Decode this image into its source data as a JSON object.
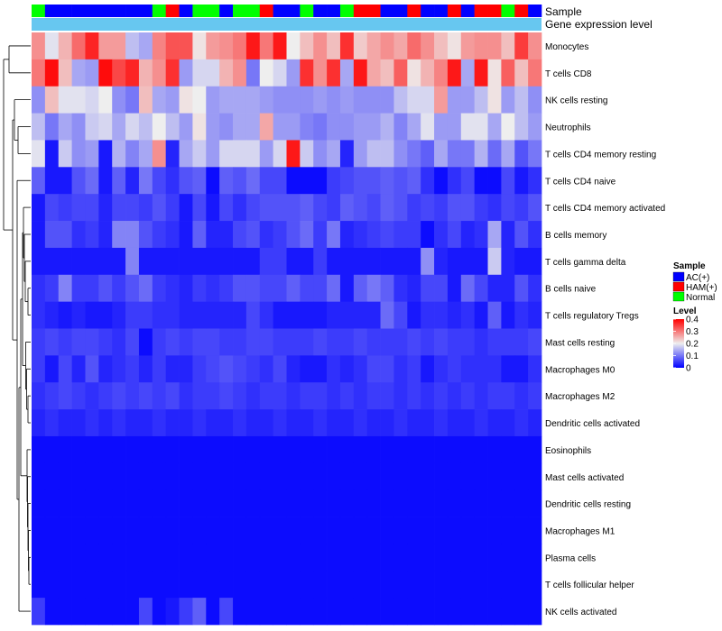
{
  "chart_data": {
    "type": "heatmap",
    "title": "",
    "annotation_labels": {
      "sample": "Sample",
      "gene_expression": "Gene expression level"
    },
    "legend": {
      "sample": {
        "title": "Sample",
        "entries": [
          {
            "label": "AC(+)",
            "color": "#0000FF"
          },
          {
            "label": "HAM(+)",
            "color": "#FF0000"
          },
          {
            "label": "Normal",
            "color": "#00FF00"
          }
        ]
      },
      "level": {
        "title": "Level",
        "ticks": [
          "0.4",
          "0.3",
          "0.2",
          "0.1",
          "0"
        ],
        "tick_values": [
          0.4,
          0.3,
          0.2,
          0.1,
          0
        ],
        "range": [
          0,
          0.4
        ]
      }
    },
    "colors": {
      "low": "#0000FF",
      "mid": "#EEEEEE",
      "high": "#FF0000",
      "gene_expression_bar": "#67C7F0",
      "dendrogram": "#000000"
    },
    "columns_sample_group": [
      "Normal",
      "AC(+)",
      "AC(+)",
      "AC(+)",
      "AC(+)",
      "AC(+)",
      "AC(+)",
      "AC(+)",
      "AC(+)",
      "Normal",
      "HAM(+)",
      "AC(+)",
      "Normal",
      "Normal",
      "AC(+)",
      "Normal",
      "Normal",
      "HAM(+)",
      "AC(+)",
      "AC(+)",
      "Normal",
      "AC(+)",
      "AC(+)",
      "Normal",
      "HAM(+)",
      "HAM(+)",
      "AC(+)",
      "AC(+)",
      "HAM(+)",
      "AC(+)",
      "AC(+)",
      "HAM(+)",
      "AC(+)",
      "HAM(+)",
      "HAM(+)",
      "Normal",
      "HAM(+)",
      "AC(+)"
    ],
    "rows": [
      "Monocytes",
      "T cells CD8",
      "NK cells resting",
      "Neutrophils",
      "T cells CD4 memory resting",
      "T cells CD4 naive",
      "T cells CD4 memory activated",
      "B cells memory",
      "T cells gamma delta",
      "B cells naive",
      "T cells regulatory  Tregs",
      "Mast cells resting",
      "Macrophages M0",
      "Macrophages M2",
      "Dendritic cells activated",
      "Eosinophils",
      "Mast cells activated",
      "Dendritic cells resting",
      "Macrophages M1",
      "Plasma cells",
      "T cells follicular helper",
      "NK cells activated"
    ],
    "values": [
      [
        0.28,
        0.19,
        0.25,
        0.31,
        0.37,
        0.27,
        0.27,
        0.16,
        0.14,
        0.29,
        0.33,
        0.33,
        0.21,
        0.27,
        0.28,
        0.3,
        0.38,
        0.3,
        0.38,
        0.2,
        0.24,
        0.28,
        0.24,
        0.36,
        0.23,
        0.26,
        0.28,
        0.26,
        0.31,
        0.28,
        0.24,
        0.21,
        0.27,
        0.28,
        0.28,
        0.24,
        0.35,
        0.28
      ],
      [
        0.3,
        0.39,
        0.24,
        0.14,
        0.13,
        0.39,
        0.34,
        0.37,
        0.25,
        0.28,
        0.36,
        0.13,
        0.18,
        0.18,
        0.25,
        0.28,
        0.1,
        0.2,
        0.18,
        0.13,
        0.36,
        0.28,
        0.36,
        0.14,
        0.38,
        0.26,
        0.24,
        0.32,
        0.21,
        0.25,
        0.29,
        0.38,
        0.14,
        0.38,
        0.21,
        0.32,
        0.24,
        0.3
      ],
      [
        0.12,
        0.24,
        0.19,
        0.19,
        0.18,
        0.2,
        0.12,
        0.1,
        0.24,
        0.14,
        0.13,
        0.21,
        0.2,
        0.13,
        0.14,
        0.14,
        0.14,
        0.13,
        0.12,
        0.12,
        0.12,
        0.13,
        0.12,
        0.13,
        0.12,
        0.12,
        0.12,
        0.16,
        0.18,
        0.18,
        0.27,
        0.13,
        0.13,
        0.16,
        0.21,
        0.13,
        0.16,
        0.12
      ],
      [
        0.16,
        0.1,
        0.14,
        0.12,
        0.17,
        0.18,
        0.14,
        0.18,
        0.16,
        0.2,
        0.16,
        0.13,
        0.21,
        0.13,
        0.12,
        0.14,
        0.14,
        0.26,
        0.13,
        0.13,
        0.11,
        0.1,
        0.12,
        0.12,
        0.13,
        0.13,
        0.15,
        0.11,
        0.14,
        0.19,
        0.13,
        0.13,
        0.19,
        0.19,
        0.14,
        0.2,
        0.16,
        0.13
      ],
      [
        0.19,
        0.02,
        0.17,
        0.12,
        0.13,
        0.02,
        0.15,
        0.11,
        0.14,
        0.28,
        0.03,
        0.14,
        0.17,
        0.13,
        0.18,
        0.18,
        0.18,
        0.13,
        0.18,
        0.38,
        0.17,
        0.12,
        0.14,
        0.03,
        0.13,
        0.16,
        0.16,
        0.12,
        0.1,
        0.08,
        0.14,
        0.1,
        0.1,
        0.15,
        0.09,
        0.14,
        0.07,
        0.1
      ],
      [
        0.08,
        0.02,
        0.02,
        0.07,
        0.09,
        0.02,
        0.08,
        0.03,
        0.1,
        0.06,
        0.04,
        0.07,
        0.08,
        0.01,
        0.08,
        0.07,
        0.09,
        0.06,
        0.06,
        0.01,
        0.01,
        0.01,
        0.05,
        0.06,
        0.07,
        0.07,
        0.08,
        0.07,
        0.08,
        0.04,
        0.01,
        0.04,
        0.06,
        0.01,
        0.01,
        0.06,
        0.02,
        0.04
      ],
      [
        0.02,
        0.06,
        0.05,
        0.06,
        0.06,
        0.03,
        0.06,
        0.06,
        0.05,
        0.07,
        0.05,
        0.02,
        0.06,
        0.02,
        0.06,
        0.04,
        0.06,
        0.07,
        0.07,
        0.07,
        0.08,
        0.06,
        0.05,
        0.08,
        0.07,
        0.06,
        0.08,
        0.07,
        0.05,
        0.06,
        0.05,
        0.07,
        0.07,
        0.05,
        0.04,
        0.06,
        0.05,
        0.07
      ],
      [
        0.02,
        0.07,
        0.07,
        0.04,
        0.05,
        0.03,
        0.11,
        0.11,
        0.07,
        0.05,
        0.04,
        0.02,
        0.08,
        0.03,
        0.03,
        0.06,
        0.07,
        0.04,
        0.05,
        0.07,
        0.09,
        0.05,
        0.1,
        0.03,
        0.04,
        0.05,
        0.06,
        0.05,
        0.05,
        0.01,
        0.04,
        0.06,
        0.03,
        0.04,
        0.14,
        0.03,
        0.07,
        0.04
      ],
      [
        0.02,
        0.02,
        0.02,
        0.02,
        0.02,
        0.02,
        0.02,
        0.11,
        0.02,
        0.02,
        0.02,
        0.02,
        0.02,
        0.02,
        0.02,
        0.02,
        0.02,
        0.05,
        0.05,
        0.02,
        0.02,
        0.05,
        0.02,
        0.02,
        0.02,
        0.02,
        0.02,
        0.02,
        0.02,
        0.12,
        0.03,
        0.02,
        0.02,
        0.02,
        0.17,
        0.03,
        0.02,
        0.02
      ],
      [
        0.04,
        0.05,
        0.11,
        0.05,
        0.05,
        0.07,
        0.05,
        0.07,
        0.09,
        0.05,
        0.04,
        0.03,
        0.05,
        0.04,
        0.05,
        0.07,
        0.07,
        0.06,
        0.06,
        0.08,
        0.06,
        0.06,
        0.09,
        0.02,
        0.08,
        0.1,
        0.08,
        0.04,
        0.03,
        0.06,
        0.06,
        0.02,
        0.09,
        0.06,
        0.03,
        0.03,
        0.07,
        0.04
      ],
      [
        0.04,
        0.03,
        0.02,
        0.03,
        0.02,
        0.02,
        0.03,
        0.05,
        0.05,
        0.04,
        0.04,
        0.03,
        0.03,
        0.03,
        0.03,
        0.03,
        0.06,
        0.04,
        0.02,
        0.02,
        0.02,
        0.02,
        0.03,
        0.03,
        0.03,
        0.03,
        0.09,
        0.06,
        0.02,
        0.04,
        0.04,
        0.03,
        0.04,
        0.02,
        0.08,
        0.02,
        0.04,
        0.03
      ],
      [
        0.05,
        0.06,
        0.05,
        0.06,
        0.06,
        0.05,
        0.04,
        0.06,
        0.01,
        0.05,
        0.06,
        0.05,
        0.06,
        0.06,
        0.05,
        0.05,
        0.06,
        0.06,
        0.05,
        0.05,
        0.05,
        0.06,
        0.05,
        0.05,
        0.06,
        0.05,
        0.05,
        0.05,
        0.06,
        0.05,
        0.06,
        0.05,
        0.05,
        0.04,
        0.05,
        0.05,
        0.05,
        0.06
      ],
      [
        0.05,
        0.02,
        0.06,
        0.03,
        0.07,
        0.03,
        0.04,
        0.05,
        0.03,
        0.05,
        0.03,
        0.03,
        0.05,
        0.06,
        0.07,
        0.06,
        0.05,
        0.04,
        0.06,
        0.03,
        0.02,
        0.02,
        0.04,
        0.03,
        0.04,
        0.06,
        0.06,
        0.04,
        0.05,
        0.02,
        0.04,
        0.05,
        0.04,
        0.04,
        0.04,
        0.02,
        0.02,
        0.04
      ],
      [
        0.04,
        0.05,
        0.06,
        0.05,
        0.04,
        0.05,
        0.06,
        0.05,
        0.06,
        0.05,
        0.06,
        0.04,
        0.05,
        0.05,
        0.06,
        0.05,
        0.04,
        0.05,
        0.05,
        0.04,
        0.05,
        0.05,
        0.04,
        0.05,
        0.04,
        0.05,
        0.05,
        0.04,
        0.05,
        0.04,
        0.05,
        0.04,
        0.05,
        0.04,
        0.05,
        0.05,
        0.04,
        0.05
      ],
      [
        0.03,
        0.04,
        0.03,
        0.03,
        0.04,
        0.03,
        0.04,
        0.03,
        0.03,
        0.04,
        0.03,
        0.03,
        0.04,
        0.03,
        0.03,
        0.04,
        0.03,
        0.03,
        0.04,
        0.03,
        0.03,
        0.04,
        0.03,
        0.03,
        0.04,
        0.03,
        0.03,
        0.04,
        0.03,
        0.03,
        0.04,
        0.03,
        0.03,
        0.04,
        0.03,
        0.03,
        0.04,
        0.03
      ],
      [
        0.01,
        0.01,
        0.01,
        0.01,
        0.01,
        0.01,
        0.01,
        0.01,
        0.01,
        0.01,
        0.01,
        0.01,
        0.01,
        0.01,
        0.01,
        0.01,
        0.01,
        0.01,
        0.01,
        0.01,
        0.01,
        0.01,
        0.01,
        0.01,
        0.01,
        0.01,
        0.01,
        0.01,
        0.01,
        0.01,
        0.01,
        0.01,
        0.01,
        0.01,
        0.01,
        0.01,
        0.01,
        0.01
      ],
      [
        0.01,
        0.01,
        0.01,
        0.01,
        0.01,
        0.01,
        0.01,
        0.01,
        0.01,
        0.01,
        0.01,
        0.01,
        0.01,
        0.01,
        0.01,
        0.01,
        0.01,
        0.01,
        0.01,
        0.01,
        0.01,
        0.01,
        0.01,
        0.01,
        0.01,
        0.01,
        0.01,
        0.01,
        0.01,
        0.01,
        0.01,
        0.01,
        0.01,
        0.01,
        0.01,
        0.01,
        0.01,
        0.01
      ],
      [
        0.01,
        0.01,
        0.01,
        0.01,
        0.01,
        0.01,
        0.01,
        0.01,
        0.01,
        0.01,
        0.01,
        0.01,
        0.01,
        0.01,
        0.01,
        0.01,
        0.01,
        0.01,
        0.01,
        0.01,
        0.01,
        0.01,
        0.01,
        0.01,
        0.01,
        0.01,
        0.01,
        0.01,
        0.01,
        0.01,
        0.01,
        0.01,
        0.01,
        0.01,
        0.01,
        0.01,
        0.01,
        0.01
      ],
      [
        0.01,
        0.01,
        0.01,
        0.01,
        0.01,
        0.01,
        0.01,
        0.01,
        0.01,
        0.01,
        0.01,
        0.01,
        0.01,
        0.01,
        0.01,
        0.01,
        0.01,
        0.01,
        0.01,
        0.01,
        0.01,
        0.01,
        0.01,
        0.01,
        0.01,
        0.01,
        0.01,
        0.01,
        0.01,
        0.01,
        0.01,
        0.01,
        0.01,
        0.01,
        0.01,
        0.01,
        0.01,
        0.01
      ],
      [
        0.01,
        0.01,
        0.01,
        0.01,
        0.01,
        0.01,
        0.01,
        0.01,
        0.01,
        0.01,
        0.01,
        0.01,
        0.01,
        0.01,
        0.01,
        0.01,
        0.01,
        0.01,
        0.01,
        0.01,
        0.01,
        0.01,
        0.01,
        0.01,
        0.01,
        0.01,
        0.01,
        0.01,
        0.01,
        0.01,
        0.01,
        0.01,
        0.01,
        0.01,
        0.01,
        0.01,
        0.01,
        0.01
      ],
      [
        0.01,
        0.01,
        0.01,
        0.01,
        0.01,
        0.01,
        0.01,
        0.01,
        0.01,
        0.01,
        0.01,
        0.01,
        0.01,
        0.01,
        0.01,
        0.01,
        0.01,
        0.01,
        0.01,
        0.01,
        0.01,
        0.01,
        0.01,
        0.01,
        0.01,
        0.01,
        0.01,
        0.01,
        0.01,
        0.01,
        0.01,
        0.01,
        0.01,
        0.01,
        0.01,
        0.01,
        0.01,
        0.01
      ],
      [
        0.05,
        0.01,
        0.01,
        0.01,
        0.01,
        0.01,
        0.01,
        0.01,
        0.06,
        0.01,
        0.02,
        0.05,
        0.08,
        0.01,
        0.06,
        0.01,
        0.01,
        0.01,
        0.01,
        0.01,
        0.01,
        0.01,
        0.01,
        0.01,
        0.01,
        0.01,
        0.01,
        0.01,
        0.01,
        0.01,
        0.01,
        0.01,
        0.01,
        0.01,
        0.01,
        0.01,
        0.01,
        0.01
      ]
    ]
  }
}
